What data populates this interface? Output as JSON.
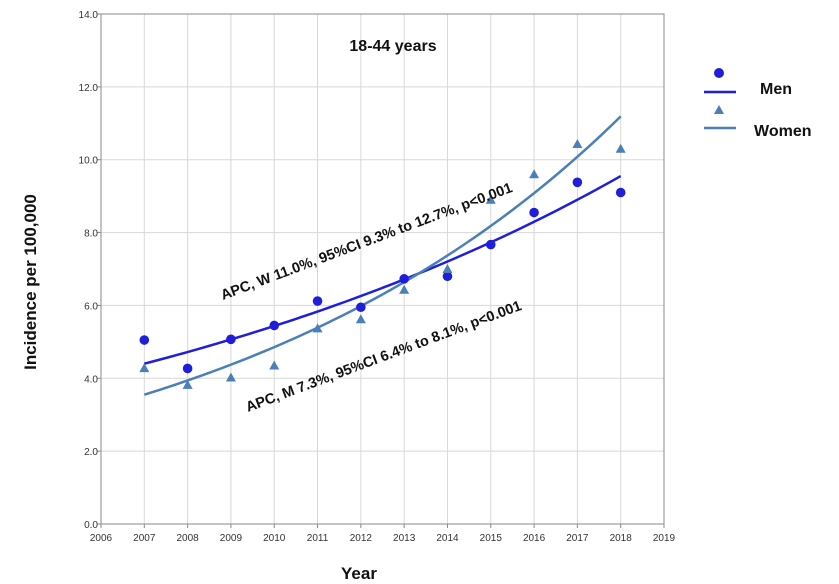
{
  "chart_data": {
    "type": "scatter",
    "title": "18-44 years",
    "xlabel": "Year",
    "ylabel": "Incidence per 100,000",
    "xlim": [
      2006,
      2019
    ],
    "ylim": [
      0,
      14
    ],
    "x_ticks": [
      "2006",
      "2007",
      "2008",
      "2009",
      "2010",
      "2011",
      "2012",
      "2013",
      "2014",
      "2015",
      "2016",
      "2017",
      "2018",
      "2019"
    ],
    "y_ticks": [
      "0.0",
      "2.0",
      "4.0",
      "6.0",
      "8.0",
      "10.0",
      "12.0",
      "14.0"
    ],
    "grid": true,
    "legend_position": "right",
    "series": [
      {
        "name": "Men",
        "marker": "circle",
        "color": "#1f1fdb",
        "x": [
          2007,
          2008,
          2009,
          2010,
          2011,
          2012,
          2013,
          2014,
          2015,
          2016,
          2017,
          2018
        ],
        "values": [
          5.05,
          4.27,
          5.07,
          5.45,
          6.12,
          5.95,
          6.73,
          6.8,
          7.67,
          8.55,
          9.38,
          9.1
        ],
        "trend": {
          "start": 4.4,
          "rate": 0.073
        }
      },
      {
        "name": "Women",
        "marker": "triangle",
        "color": "#4a7fb8",
        "x": [
          2007,
          2008,
          2009,
          2010,
          2011,
          2012,
          2013,
          2014,
          2015,
          2016,
          2017,
          2018
        ],
        "values": [
          4.28,
          3.82,
          4.02,
          4.35,
          5.37,
          5.62,
          6.43,
          7.0,
          8.9,
          9.6,
          10.43,
          10.3
        ],
        "trend": {
          "start": 3.55,
          "rate": 0.11
        }
      }
    ],
    "annotations": [
      "APC, W 11.0%, 95%CI 9.3% to 12.7%, p<0.001",
      "APC, M 7.3%, 95%CI 6.4% to 8.1%, p<0.001"
    ]
  }
}
